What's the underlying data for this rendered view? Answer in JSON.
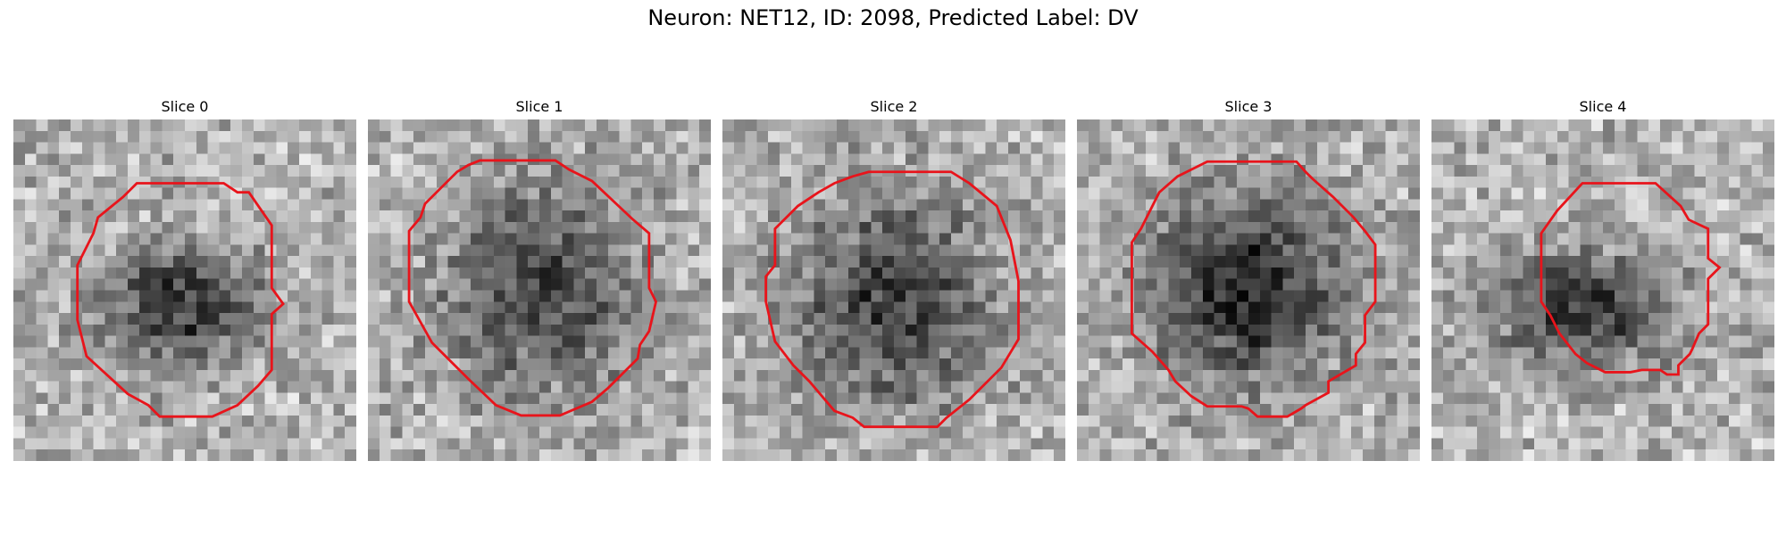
{
  "suptitle": "Neuron: NET12, ID: 2098, Predicted Label: DV",
  "outline_color": "#e8141b",
  "panels": [
    {
      "title": "Slice 0",
      "seed": 11,
      "blob": {
        "cx": 14.6,
        "cy": 16.2,
        "rx": 8.4,
        "ry": 6.3,
        "depth": 0.52
      },
      "contour": [
        [
          10.8,
          5.6
        ],
        [
          18.4,
          5.6
        ],
        [
          19.6,
          6.4
        ],
        [
          20.6,
          6.4
        ],
        [
          22.6,
          9.3
        ],
        [
          22.6,
          14.8
        ],
        [
          23.6,
          16.2
        ],
        [
          22.6,
          17.1
        ],
        [
          22.6,
          22.0
        ],
        [
          21.4,
          23.4
        ],
        [
          19.6,
          25.1
        ],
        [
          17.4,
          26.1
        ],
        [
          12.8,
          26.1
        ],
        [
          11.8,
          25.1
        ],
        [
          10.0,
          24.1
        ],
        [
          6.4,
          20.8
        ],
        [
          5.6,
          17.6
        ],
        [
          5.6,
          12.8
        ],
        [
          7.0,
          10.0
        ],
        [
          7.4,
          8.6
        ],
        [
          9.6,
          6.8
        ]
      ]
    },
    {
      "title": "Slice 1",
      "seed": 23,
      "blob": {
        "cx": 15.0,
        "cy": 15.0,
        "rx": 10.6,
        "ry": 10.6,
        "depth": 0.45
      },
      "contour": [
        [
          9.8,
          3.6
        ],
        [
          16.4,
          3.6
        ],
        [
          17.6,
          4.4
        ],
        [
          19.6,
          5.4
        ],
        [
          23.2,
          8.8
        ],
        [
          24.6,
          10.0
        ],
        [
          24.6,
          14.8
        ],
        [
          25.2,
          16.0
        ],
        [
          24.6,
          18.6
        ],
        [
          23.8,
          19.8
        ],
        [
          23.6,
          21.0
        ],
        [
          21.0,
          23.6
        ],
        [
          19.6,
          24.8
        ],
        [
          16.8,
          26.0
        ],
        [
          13.4,
          26.0
        ],
        [
          11.2,
          25.1
        ],
        [
          8.8,
          22.8
        ],
        [
          5.6,
          19.6
        ],
        [
          4.6,
          17.8
        ],
        [
          3.6,
          16.0
        ],
        [
          3.6,
          9.8
        ],
        [
          4.6,
          8.6
        ],
        [
          5.0,
          7.4
        ],
        [
          7.8,
          4.6
        ],
        [
          8.8,
          4.0
        ]
      ]
    },
    {
      "title": "Slice 2",
      "seed": 37,
      "blob": {
        "cx": 14.8,
        "cy": 16.0,
        "rx": 11.0,
        "ry": 11.0,
        "depth": 0.46
      },
      "contour": [
        [
          12.8,
          4.6
        ],
        [
          20.0,
          4.6
        ],
        [
          21.6,
          5.6
        ],
        [
          24.0,
          7.6
        ],
        [
          25.2,
          10.6
        ],
        [
          25.9,
          14.2
        ],
        [
          25.9,
          19.3
        ],
        [
          24.4,
          21.8
        ],
        [
          21.6,
          24.6
        ],
        [
          19.6,
          26.2
        ],
        [
          18.8,
          27.0
        ],
        [
          12.4,
          27.0
        ],
        [
          11.4,
          26.2
        ],
        [
          9.8,
          25.6
        ],
        [
          7.6,
          23.0
        ],
        [
          6.2,
          21.6
        ],
        [
          4.6,
          19.5
        ],
        [
          3.8,
          16.0
        ],
        [
          3.8,
          13.8
        ],
        [
          4.6,
          12.8
        ],
        [
          4.6,
          9.6
        ],
        [
          6.6,
          7.6
        ],
        [
          8.4,
          6.4
        ],
        [
          9.8,
          5.6
        ],
        [
          11.4,
          5.0
        ]
      ]
    },
    {
      "title": "Slice 3",
      "seed": 53,
      "blob": {
        "cx": 15.0,
        "cy": 14.8,
        "rx": 10.4,
        "ry": 10.4,
        "depth": 0.56
      },
      "contour": [
        [
          11.4,
          3.7
        ],
        [
          19.2,
          3.7
        ],
        [
          20.0,
          4.6
        ],
        [
          20.6,
          5.2
        ],
        [
          22.4,
          6.8
        ],
        [
          24.2,
          8.6
        ],
        [
          25.2,
          9.8
        ],
        [
          26.1,
          11.0
        ],
        [
          26.1,
          16.0
        ],
        [
          25.2,
          17.2
        ],
        [
          25.2,
          19.6
        ],
        [
          24.4,
          20.6
        ],
        [
          24.4,
          21.6
        ],
        [
          22.0,
          23.0
        ],
        [
          22.0,
          24.0
        ],
        [
          20.0,
          25.1
        ],
        [
          19.6,
          25.4
        ],
        [
          18.4,
          26.1
        ],
        [
          15.8,
          26.1
        ],
        [
          15.0,
          25.4
        ],
        [
          14.4,
          25.2
        ],
        [
          11.4,
          25.2
        ],
        [
          10.0,
          24.3
        ],
        [
          8.6,
          23.0
        ],
        [
          8.0,
          22.0
        ],
        [
          6.6,
          20.4
        ],
        [
          4.8,
          18.8
        ],
        [
          4.8,
          10.8
        ],
        [
          5.6,
          9.6
        ],
        [
          6.4,
          8.0
        ],
        [
          7.2,
          6.4
        ],
        [
          8.8,
          5.0
        ],
        [
          9.6,
          4.6
        ]
      ]
    },
    {
      "title": "Slice 4",
      "seed": 71,
      "blob": {
        "cx": 13.2,
        "cy": 16.5,
        "rx": 9.8,
        "ry": 5.9,
        "depth": 0.5
      },
      "contour": [
        [
          13.2,
          5.6
        ],
        [
          19.6,
          5.6
        ],
        [
          21.8,
          7.6
        ],
        [
          22.5,
          8.8
        ],
        [
          24.2,
          9.6
        ],
        [
          24.2,
          12.2
        ],
        [
          25.2,
          13.0
        ],
        [
          24.2,
          14.0
        ],
        [
          24.2,
          18.0
        ],
        [
          23.4,
          18.8
        ],
        [
          22.8,
          20.2
        ],
        [
          22.6,
          20.6
        ],
        [
          21.6,
          21.6
        ],
        [
          21.6,
          22.4
        ],
        [
          20.6,
          22.4
        ],
        [
          20.0,
          22.0
        ],
        [
          18.4,
          22.0
        ],
        [
          17.4,
          22.2
        ],
        [
          15.2,
          22.2
        ],
        [
          13.6,
          21.4
        ],
        [
          12.6,
          20.6
        ],
        [
          11.2,
          18.8
        ],
        [
          10.4,
          17.2
        ],
        [
          9.6,
          16.0
        ],
        [
          9.6,
          10.0
        ],
        [
          11.0,
          8.0
        ]
      ]
    }
  ]
}
